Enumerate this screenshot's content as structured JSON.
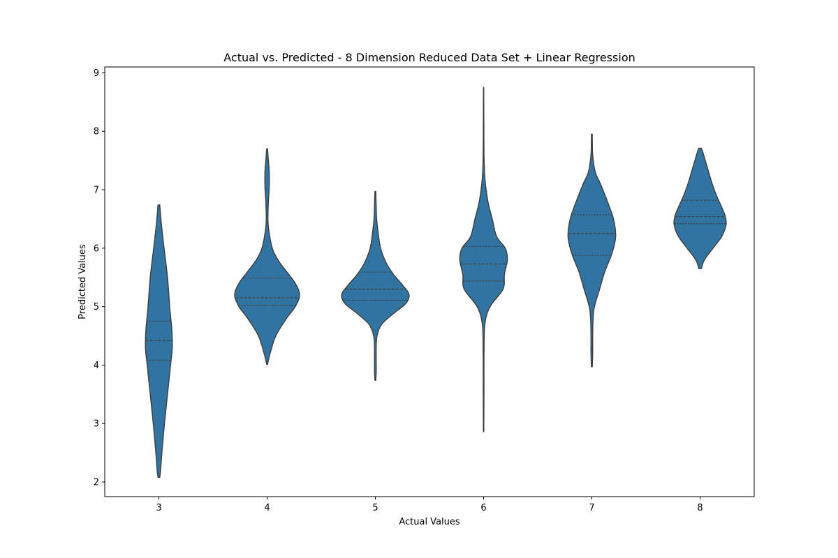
{
  "chart_data": {
    "type": "violin",
    "title": "Actual vs. Predicted - 8 Dimension Reduced Data Set + Linear Regression",
    "xlabel": "Actual Values",
    "ylabel": "Predicted Values",
    "categories": [
      "3",
      "4",
      "5",
      "6",
      "7",
      "8"
    ],
    "yticks": [
      2,
      3,
      4,
      5,
      6,
      7,
      8,
      9
    ],
    "ylim": [
      1.75,
      9.1
    ],
    "grid": false,
    "color": "#3274a1",
    "violins": [
      {
        "category": "3",
        "quartiles": [
          4.08,
          4.42,
          4.75
        ],
        "profile": [
          [
            2.08,
            0.02
          ],
          [
            2.2,
            0.04
          ],
          [
            2.5,
            0.07
          ],
          [
            3.0,
            0.13
          ],
          [
            3.5,
            0.2
          ],
          [
            4.0,
            0.27
          ],
          [
            4.3,
            0.31
          ],
          [
            4.6,
            0.3
          ],
          [
            5.0,
            0.25
          ],
          [
            5.5,
            0.2
          ],
          [
            6.0,
            0.12
          ],
          [
            6.4,
            0.06
          ],
          [
            6.74,
            0.02
          ]
        ]
      },
      {
        "category": "4",
        "quartiles": [
          5.02,
          5.15,
          5.49
        ],
        "profile": [
          [
            4.01,
            0.01
          ],
          [
            4.2,
            0.07
          ],
          [
            4.5,
            0.2
          ],
          [
            4.8,
            0.45
          ],
          [
            5.0,
            0.65
          ],
          [
            5.2,
            0.75
          ],
          [
            5.4,
            0.65
          ],
          [
            5.6,
            0.45
          ],
          [
            5.8,
            0.25
          ],
          [
            6.0,
            0.12
          ],
          [
            6.3,
            0.04
          ],
          [
            6.5,
            0.02
          ],
          [
            6.8,
            0.03
          ],
          [
            7.05,
            0.05
          ],
          [
            7.3,
            0.05
          ],
          [
            7.5,
            0.03
          ],
          [
            7.7,
            0.01
          ]
        ]
      },
      {
        "category": "5",
        "quartiles": [
          5.11,
          5.3,
          5.59
        ],
        "profile": [
          [
            3.74,
            0.01
          ],
          [
            3.9,
            0.02
          ],
          [
            4.1,
            0.02
          ],
          [
            4.3,
            0.02
          ],
          [
            4.5,
            0.04
          ],
          [
            4.7,
            0.15
          ],
          [
            4.9,
            0.45
          ],
          [
            5.05,
            0.7
          ],
          [
            5.2,
            0.78
          ],
          [
            5.35,
            0.65
          ],
          [
            5.55,
            0.42
          ],
          [
            5.75,
            0.25
          ],
          [
            6.0,
            0.12
          ],
          [
            6.3,
            0.06
          ],
          [
            6.5,
            0.03
          ],
          [
            6.7,
            0.02
          ],
          [
            6.97,
            0.01
          ]
        ]
      },
      {
        "category": "6",
        "quartiles": [
          5.44,
          5.73,
          6.03
        ],
        "profile": [
          [
            2.86,
            0.005
          ],
          [
            3.5,
            0.008
          ],
          [
            4.2,
            0.01
          ],
          [
            4.7,
            0.03
          ],
          [
            5.0,
            0.15
          ],
          [
            5.3,
            0.45
          ],
          [
            5.55,
            0.48
          ],
          [
            5.8,
            0.55
          ],
          [
            6.0,
            0.5
          ],
          [
            6.2,
            0.3
          ],
          [
            6.5,
            0.2
          ],
          [
            6.8,
            0.1
          ],
          [
            7.2,
            0.03
          ],
          [
            7.6,
            0.01
          ],
          [
            8.2,
            0.006
          ],
          [
            8.75,
            0.003
          ]
        ]
      },
      {
        "category": "7",
        "quartiles": [
          5.88,
          6.25,
          6.57
        ],
        "profile": [
          [
            3.97,
            0.01
          ],
          [
            4.2,
            0.02
          ],
          [
            4.5,
            0.02
          ],
          [
            4.8,
            0.03
          ],
          [
            5.0,
            0.06
          ],
          [
            5.3,
            0.18
          ],
          [
            5.6,
            0.3
          ],
          [
            5.9,
            0.46
          ],
          [
            6.2,
            0.55
          ],
          [
            6.5,
            0.5
          ],
          [
            6.8,
            0.36
          ],
          [
            7.1,
            0.2
          ],
          [
            7.3,
            0.08
          ],
          [
            7.6,
            0.02
          ],
          [
            7.95,
            0.01
          ]
        ]
      },
      {
        "category": "8",
        "quartiles": [
          6.42,
          6.54,
          6.82
        ],
        "profile": [
          [
            5.65,
            0.03
          ],
          [
            5.8,
            0.1
          ],
          [
            6.0,
            0.3
          ],
          [
            6.2,
            0.5
          ],
          [
            6.4,
            0.6
          ],
          [
            6.55,
            0.58
          ],
          [
            6.7,
            0.5
          ],
          [
            6.9,
            0.38
          ],
          [
            7.1,
            0.28
          ],
          [
            7.3,
            0.2
          ],
          [
            7.5,
            0.12
          ],
          [
            7.65,
            0.06
          ],
          [
            7.71,
            0.03
          ]
        ]
      }
    ]
  }
}
